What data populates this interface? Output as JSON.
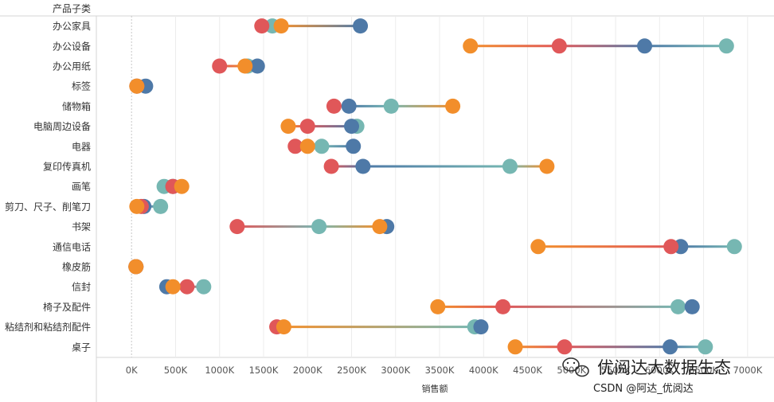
{
  "chart_data": {
    "type": "dumbbell",
    "row_header": "产品子类",
    "xlabel": "销售额",
    "xlim": [
      -400,
      7300
    ],
    "ticks": [
      0,
      500,
      1000,
      1500,
      2000,
      2500,
      3000,
      3500,
      4000,
      4500,
      5000,
      5500,
      6000,
      6500,
      7000
    ],
    "tick_labels": [
      "0K",
      "500K",
      "1000K",
      "1500K",
      "2000K",
      "2500K",
      "3000K",
      "3500K",
      "4000K",
      "4500K",
      "5000K",
      "5500K",
      "6000K",
      "6500K",
      "7000K"
    ],
    "categories": [
      "办公家具",
      "办公设备",
      "办公用纸",
      "标签",
      "储物箱",
      "电脑周边设备",
      "电器",
      "复印传真机",
      "画笔",
      "剪刀、尺子、削笔刀",
      "书架",
      "通信电话",
      "橡皮筋",
      "信封",
      "椅子及配件",
      "粘结剂和粘结剂配件",
      "桌子"
    ],
    "series": [
      {
        "name": "series-red",
        "color": "#e05759",
        "values": [
          1480,
          4860,
          1000,
          60,
          2300,
          2000,
          1860,
          2270,
          470,
          110,
          1200,
          6130,
          50,
          630,
          4220,
          1650,
          4920
        ]
      },
      {
        "name": "series-orange",
        "color": "#f28e2b",
        "values": [
          1700,
          3850,
          1290,
          60,
          3650,
          1780,
          2000,
          4720,
          570,
          60,
          2820,
          4620,
          50,
          470,
          3480,
          1730,
          4360
        ]
      },
      {
        "name": "series-blue",
        "color": "#4e79a7",
        "values": [
          2600,
          5830,
          1430,
          160,
          2470,
          2500,
          2520,
          2630,
          470,
          140,
          2900,
          6240,
          50,
          400,
          6370,
          3970,
          6120
        ]
      },
      {
        "name": "series-teal",
        "color": "#76b7b2",
        "values": [
          1600,
          6760,
          1320,
          60,
          2950,
          2560,
          2160,
          4300,
          370,
          330,
          2130,
          6850,
          50,
          820,
          6210,
          3900,
          6520
        ]
      }
    ]
  },
  "watermark": {
    "line1": "优阅达大数据生态",
    "line2": "CSDN @阿达_优阅达",
    "icon": "wechat-icon"
  }
}
